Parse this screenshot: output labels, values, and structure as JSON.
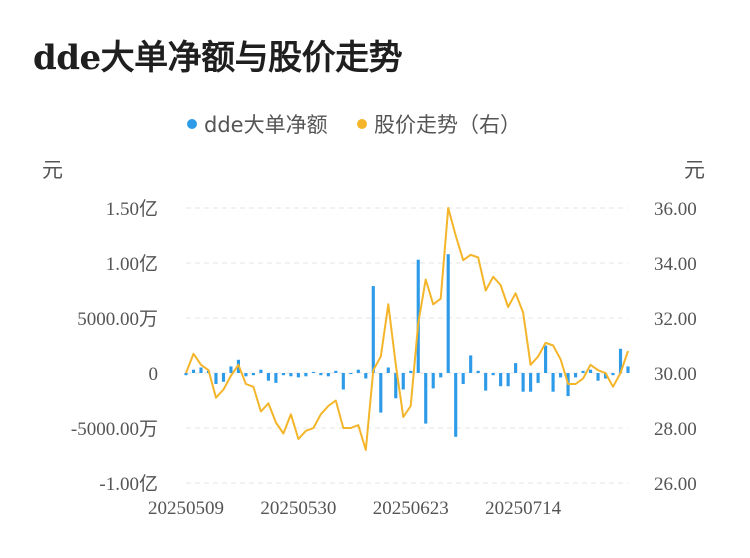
{
  "title": "dde大单净额与股价走势",
  "chart_data": {
    "type": "bar+line",
    "legend": [
      "dde大单净额",
      "股价走势（右）"
    ],
    "left_unit": "元",
    "right_unit": "元",
    "left_ticks": [
      {
        "v": 150000000,
        "label": "1.50亿"
      },
      {
        "v": 100000000,
        "label": "1.00亿"
      },
      {
        "v": 50000000,
        "label": "5000.00万"
      },
      {
        "v": 0,
        "label": "0"
      },
      {
        "v": -50000000,
        "label": "-5000.00万"
      },
      {
        "v": -100000000,
        "label": "-1.00亿"
      }
    ],
    "right_ticks": [
      {
        "v": 36,
        "label": "36.00"
      },
      {
        "v": 34,
        "label": "34.00"
      },
      {
        "v": 32,
        "label": "32.00"
      },
      {
        "v": 30,
        "label": "30.00"
      },
      {
        "v": 28,
        "label": "28.00"
      },
      {
        "v": 26,
        "label": "26.00"
      }
    ],
    "ylim_left": [
      -100000000,
      150000000
    ],
    "ylim_right": [
      26,
      36
    ],
    "x_labels": [
      {
        "i": 0,
        "label": "20250509"
      },
      {
        "i": 15,
        "label": "20250530"
      },
      {
        "i": 30,
        "label": "20250623"
      },
      {
        "i": 45,
        "label": "20250714"
      }
    ],
    "bar_values": [
      -2000000,
      3000000,
      5000000,
      2000000,
      -10000000,
      -8000000,
      6000000,
      12000000,
      -3000000,
      -2000000,
      3000000,
      -7000000,
      -9000000,
      -2000000,
      -3000000,
      -4000000,
      -3000000,
      1000000,
      -2000000,
      -3000000,
      2000000,
      -15000000,
      -1000000,
      3000000,
      -5000000,
      79000000,
      -36000000,
      5000000,
      -23000000,
      -15000000,
      2000000,
      103000000,
      -46000000,
      -14000000,
      -4000000,
      108000000,
      -58000000,
      -10000000,
      16000000,
      2000000,
      -16000000,
      -2000000,
      -12000000,
      -12000000,
      9000000,
      -17000000,
      -17000000,
      -9000000,
      25000000,
      -17000000,
      -4000000,
      -21000000,
      -4000000,
      2000000,
      3000000,
      -7000000,
      -5000000,
      -2000000,
      22000000,
      6000000
    ],
    "price_values": [
      30.0,
      30.7,
      30.3,
      30.1,
      29.1,
      29.4,
      29.9,
      30.3,
      29.6,
      29.5,
      28.6,
      28.9,
      28.2,
      27.8,
      28.5,
      27.6,
      27.9,
      28.0,
      28.5,
      28.8,
      29.0,
      28.0,
      28.0,
      28.1,
      27.2,
      30.1,
      30.6,
      32.5,
      30.3,
      28.4,
      28.8,
      31.8,
      33.4,
      32.5,
      32.7,
      36.0,
      35.0,
      34.1,
      34.3,
      34.2,
      33.0,
      33.5,
      33.2,
      32.4,
      32.9,
      32.2,
      30.3,
      30.6,
      31.1,
      31.0,
      30.5,
      29.6,
      29.6,
      29.8,
      30.3,
      30.1,
      30.0,
      29.5,
      30.0,
      30.8
    ]
  },
  "colors": {
    "bar": "#2e9be8",
    "line": "#f4b52a",
    "grid": "#e6e6e6"
  }
}
